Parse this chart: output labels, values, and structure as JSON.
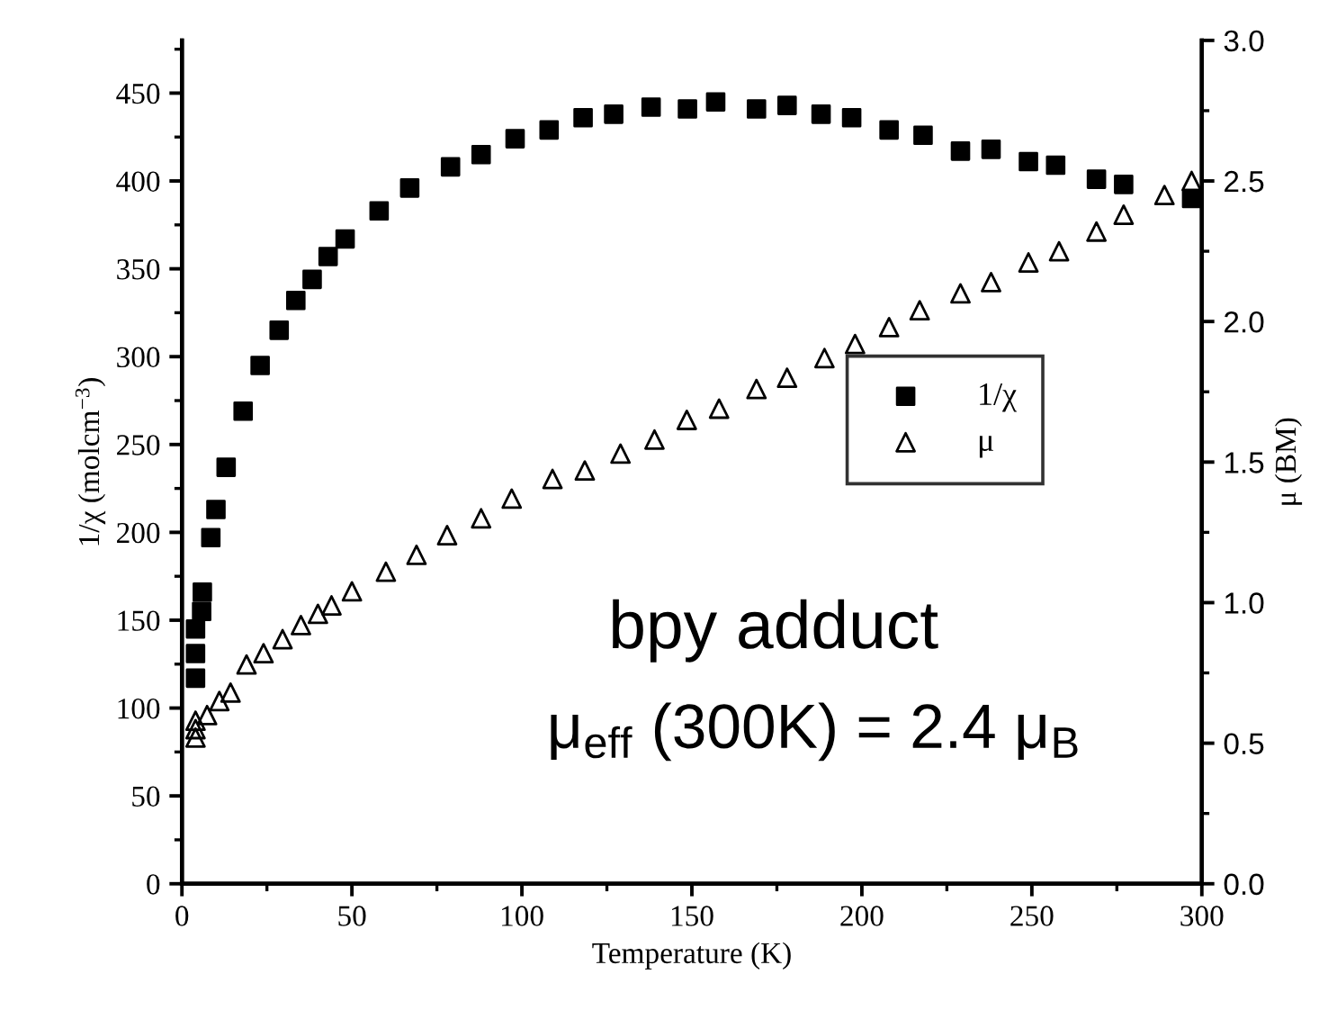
{
  "chart_data": {
    "type": "scatter",
    "xlabel": "Temperature (K)",
    "ylabel": "1/χ (molcm$^{−3}$)",
    "y2label": "μ (BM)",
    "xlim": [
      0,
      300
    ],
    "xticks": [
      0,
      50,
      100,
      150,
      200,
      250,
      300
    ],
    "ylim": [
      0,
      480
    ],
    "yticks": [
      0,
      50,
      100,
      150,
      200,
      250,
      300,
      350,
      400,
      450
    ],
    "y2lim": [
      0,
      3.0
    ],
    "y2ticks": [
      {
        "value": 0,
        "label": "0.0"
      },
      {
        "value": 0.5,
        "label": "0.5"
      },
      {
        "value": 1,
        "label": "1.0"
      },
      {
        "value": 1.5,
        "label": "1.5"
      },
      {
        "value": 2,
        "label": "2.0"
      },
      {
        "value": 2.5,
        "label": "2.5"
      },
      {
        "value": 3,
        "label": "3.0"
      }
    ],
    "grid": false,
    "legend": "right",
    "annotations": [
      "bpy adduct",
      "μ$_{eff}$ (300K) = 2.4 μ$_{B}$"
    ],
    "series": [
      {
        "name": "1/χ",
        "color": "#000000",
        "marker": "square",
        "axis": "y",
        "x": [
          4,
          4,
          4,
          5.8,
          6,
          8.5,
          10,
          13,
          18,
          23,
          28.6,
          33.5,
          38.3,
          43,
          48,
          58,
          67,
          79,
          88,
          98,
          108,
          118,
          127,
          138,
          148.7,
          157,
          169,
          178,
          188,
          197,
          208,
          218,
          229,
          238,
          249,
          257,
          269,
          277,
          297
        ],
        "values": [
          117,
          131,
          145,
          155,
          166,
          197,
          213,
          237,
          269,
          295,
          315,
          332,
          344,
          357,
          367,
          383,
          396,
          408,
          415,
          424,
          429,
          436,
          438,
          442,
          441,
          445,
          441,
          443,
          438,
          436,
          429,
          426,
          417,
          418,
          411,
          409,
          401,
          398,
          390
        ]
      },
      {
        "name": "μ",
        "color": "#000000",
        "marker": "triangle",
        "axis": "y2",
        "x": [
          4,
          4,
          4,
          7.4,
          11,
          14.3,
          19,
          24,
          29.6,
          35,
          40,
          44,
          50,
          60,
          69,
          78,
          88,
          97,
          109,
          118.5,
          129,
          139,
          148.5,
          158,
          169,
          178,
          189,
          198,
          208,
          217,
          229,
          238,
          249,
          258,
          269,
          277,
          289,
          297
        ],
        "values": [
          0.52,
          0.55,
          0.58,
          0.6,
          0.65,
          0.68,
          0.78,
          0.82,
          0.87,
          0.92,
          0.96,
          0.99,
          1.04,
          1.11,
          1.17,
          1.24,
          1.3,
          1.37,
          1.44,
          1.47,
          1.53,
          1.58,
          1.65,
          1.69,
          1.76,
          1.8,
          1.87,
          1.92,
          1.98,
          2.04,
          2.1,
          2.14,
          2.21,
          2.25,
          2.32,
          2.38,
          2.45,
          2.5
        ]
      }
    ]
  }
}
